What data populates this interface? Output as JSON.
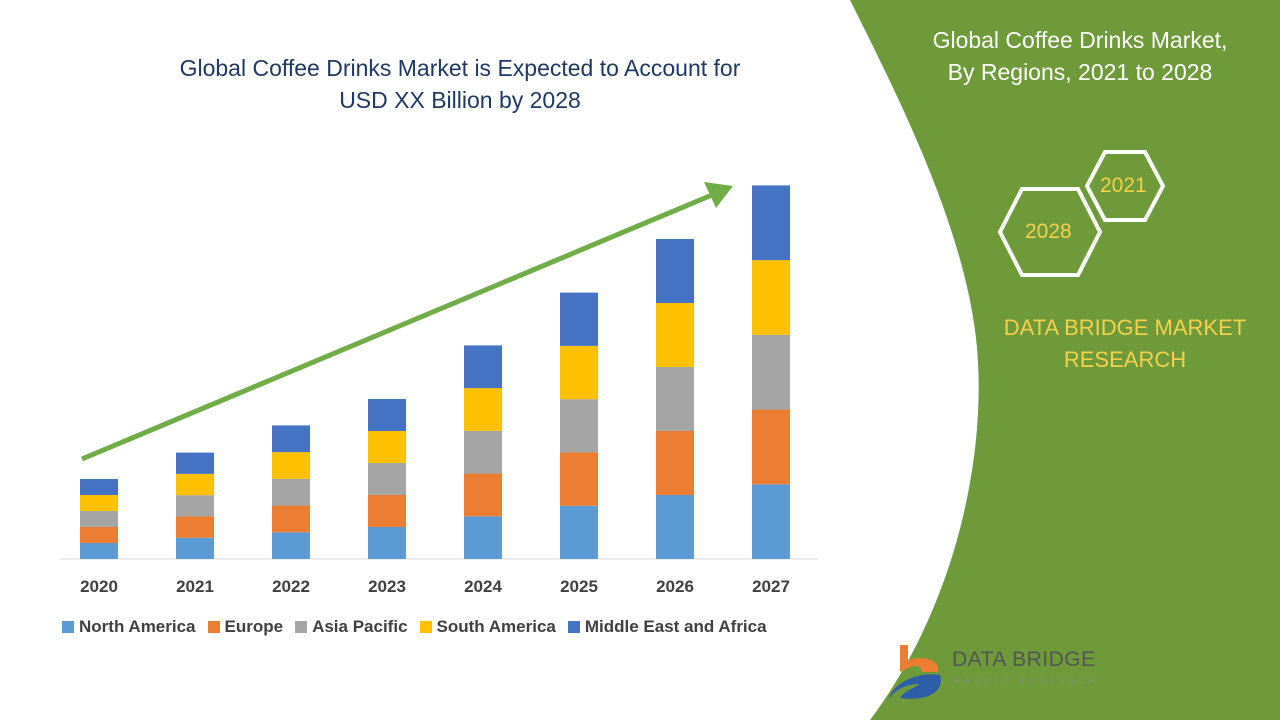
{
  "header": {
    "title_line1": "Global Coffee Drinks Market is Expected to Account for",
    "title_line2": "USD XX Billion by 2028"
  },
  "side_panel": {
    "title_line1": "Global Coffee Drinks Market,",
    "title_line2": "By Regions, 2021 to 2028",
    "hex_a": "2021",
    "hex_b": "2028",
    "brand_line1": "DATA BRIDGE MARKET",
    "brand_line2": "RESEARCH",
    "logo_text": "DATA BRIDGE",
    "logo_sub": "MARKET RESEARCH",
    "color": "#6e9a3a"
  },
  "chart_data": {
    "type": "bar",
    "stacked": true,
    "title": "Global Coffee Drinks Market is Expected to Account for USD XX Billion by 2028",
    "categories": [
      "2020",
      "2021",
      "2022",
      "2023",
      "2024",
      "2025",
      "2026",
      "2027"
    ],
    "series": [
      {
        "name": "North America",
        "color": "#5b9bd5",
        "values": [
          1.0,
          1.33,
          1.67,
          2.0,
          2.67,
          3.33,
          4.0,
          4.67
        ]
      },
      {
        "name": "Europe",
        "color": "#ed7d31",
        "values": [
          1.0,
          1.33,
          1.67,
          2.0,
          2.67,
          3.33,
          4.0,
          4.67
        ]
      },
      {
        "name": "Asia Pacific",
        "color": "#a5a5a5",
        "values": [
          1.0,
          1.33,
          1.67,
          2.0,
          2.67,
          3.33,
          4.0,
          4.67
        ]
      },
      {
        "name": "South America",
        "color": "#ffc000",
        "values": [
          1.0,
          1.33,
          1.67,
          2.0,
          2.67,
          3.33,
          4.0,
          4.67
        ]
      },
      {
        "name": "Middle East and Africa",
        "color": "#4472c4",
        "values": [
          1.0,
          1.33,
          1.67,
          2.0,
          2.67,
          3.33,
          4.0,
          4.67
        ]
      }
    ],
    "legend": "bottom",
    "grid": false,
    "trend_arrow_color": "#70ad47"
  }
}
